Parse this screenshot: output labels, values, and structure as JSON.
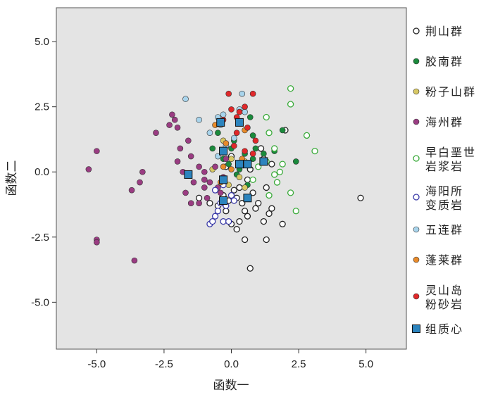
{
  "chart_data": {
    "type": "scatter",
    "xlabel": "函数一",
    "ylabel": "函数二",
    "xlim": [
      -6.5,
      6.5
    ],
    "ylim": [
      -6.8,
      6.3
    ],
    "xticks": [
      "-5.0",
      "-2.5",
      "0.0",
      "2.5",
      "5.0"
    ],
    "xtick_values": [
      -5,
      -2.5,
      0,
      2.5,
      5
    ],
    "yticks": [
      "5.0",
      "2.5",
      "0.0",
      "-2.5",
      "-5.0"
    ],
    "ytick_values": [
      5,
      2.5,
      0,
      -2.5,
      -5
    ],
    "grid": false,
    "legend_position": "right",
    "series": [
      {
        "name": "荆山群",
        "legend_lines": [
          "荆山群"
        ],
        "marker": "circle-open",
        "color": "#222222",
        "points": [
          [
            4.8,
            -1.0
          ],
          [
            0.7,
            -3.7
          ],
          [
            1.3,
            -2.6
          ],
          [
            0.5,
            -2.6
          ],
          [
            1.9,
            -2.0
          ],
          [
            1.2,
            -1.9
          ],
          [
            1.4,
            -1.6
          ],
          [
            1.5,
            -1.4
          ],
          [
            1.0,
            -1.2
          ],
          [
            0.8,
            -0.8
          ],
          [
            1.3,
            -0.6
          ],
          [
            0.2,
            -2.2
          ],
          [
            0.0,
            -2.0
          ],
          [
            0.3,
            -1.9
          ],
          [
            0.6,
            -1.7
          ],
          [
            -0.2,
            -1.5
          ],
          [
            0.5,
            -1.5
          ],
          [
            0.9,
            -1.4
          ],
          [
            -0.5,
            -1.3
          ],
          [
            -0.1,
            -1.1
          ],
          [
            0.2,
            -1.0
          ],
          [
            0.4,
            -1.2
          ],
          [
            -0.3,
            -0.9
          ],
          [
            0.1,
            -0.7
          ],
          [
            0.3,
            -0.6
          ],
          [
            -1.2,
            -1.0
          ],
          [
            -0.8,
            -1.2
          ],
          [
            2.0,
            1.6
          ],
          [
            1.1,
            0.9
          ],
          [
            1.2,
            0.5
          ],
          [
            0.7,
            0.1
          ],
          [
            0.0,
            0.6
          ],
          [
            0.4,
            0.3
          ],
          [
            -0.2,
            0.2
          ],
          [
            0.6,
            -0.3
          ],
          [
            1.5,
            0.3
          ]
        ]
      },
      {
        "name": "胶南群",
        "legend_lines": [
          "胶南群"
        ],
        "marker": "circle",
        "color": "#1a8a3c",
        "points": [
          [
            1.9,
            1.6
          ],
          [
            2.4,
            0.4
          ],
          [
            1.6,
            0.8
          ],
          [
            1.2,
            0.7
          ],
          [
            0.8,
            0.5
          ],
          [
            0.5,
            0.7
          ],
          [
            0.3,
            0.1
          ],
          [
            0.0,
            0.9
          ],
          [
            -0.3,
            0.5
          ],
          [
            -0.7,
            0.9
          ],
          [
            -0.5,
            1.5
          ],
          [
            0.8,
            1.4
          ],
          [
            1.0,
            0.2
          ],
          [
            0.2,
            -0.1
          ],
          [
            0.6,
            -0.5
          ],
          [
            0.9,
            0.9
          ],
          [
            -0.1,
            0.3
          ],
          [
            0.1,
            1.2
          ],
          [
            0.7,
            2.1
          ]
        ]
      },
      {
        "name": "粉子山群",
        "legend_lines": [
          "粉子山群"
        ],
        "marker": "circle",
        "color": "#d8c864",
        "points": [
          [
            -0.7,
            0.1
          ],
          [
            0.5,
            -0.6
          ],
          [
            0.0,
            0.5
          ],
          [
            -0.3,
            1.2
          ],
          [
            0.5,
            0.4
          ],
          [
            0.3,
            -0.2
          ],
          [
            -0.1,
            -0.5
          ]
        ]
      },
      {
        "name": "海州群",
        "legend_lines": [
          "海州群"
        ],
        "marker": "circle",
        "color": "#9a3c82",
        "points": [
          [
            -5.0,
            0.8
          ],
          [
            -5.3,
            0.1
          ],
          [
            -5.0,
            -2.6
          ],
          [
            -5.0,
            -2.7
          ],
          [
            -3.6,
            -3.4
          ],
          [
            -3.3,
            0.0
          ],
          [
            -3.4,
            -0.4
          ],
          [
            -3.7,
            -0.7
          ],
          [
            -2.8,
            1.5
          ],
          [
            -2.3,
            1.8
          ],
          [
            -2.1,
            2.0
          ],
          [
            -2.0,
            1.7
          ],
          [
            -1.6,
            1.2
          ],
          [
            -1.8,
            0.0
          ],
          [
            -1.5,
            0.6
          ],
          [
            -1.2,
            0.2
          ],
          [
            -1.0,
            0.0
          ],
          [
            -1.7,
            -0.8
          ],
          [
            -1.5,
            -1.2
          ],
          [
            -1.2,
            -1.2
          ],
          [
            -1.0,
            -0.6
          ],
          [
            -0.8,
            -0.4
          ],
          [
            -0.5,
            -0.6
          ],
          [
            -0.3,
            -0.2
          ],
          [
            -0.6,
            0.2
          ],
          [
            -0.2,
            0.5
          ],
          [
            -0.4,
            -0.8
          ],
          [
            -2.0,
            0.4
          ],
          [
            -1.4,
            -0.4
          ],
          [
            -0.9,
            -1.0
          ],
          [
            -2.2,
            2.2
          ],
          [
            -1.9,
            0.9
          ],
          [
            -1.0,
            -0.3
          ]
        ]
      },
      {
        "name": "早白垩世岩浆岩",
        "legend_lines": [
          "早白垩世",
          "岩浆岩"
        ],
        "marker": "circle-open",
        "color": "#3aaa3a",
        "points": [
          [
            2.2,
            3.2
          ],
          [
            2.2,
            2.6
          ],
          [
            1.3,
            2.1
          ],
          [
            2.8,
            1.4
          ],
          [
            3.1,
            0.8
          ],
          [
            1.4,
            1.5
          ],
          [
            1.6,
            0.9
          ],
          [
            1.9,
            0.3
          ],
          [
            2.2,
            -0.8
          ],
          [
            2.4,
            -1.5
          ],
          [
            1.7,
            -0.4
          ],
          [
            1.4,
            -0.9
          ],
          [
            1.0,
            0.2
          ],
          [
            1.6,
            -0.1
          ],
          [
            0.8,
            -0.3
          ],
          [
            1.8,
            0.0
          ],
          [
            1.3,
            0.4
          ]
        ]
      },
      {
        "name": "海阳所变质岩",
        "legend_lines": [
          "海阳所",
          "变质岩"
        ],
        "marker": "circle-open",
        "color": "#3a3aa8",
        "points": [
          [
            -0.6,
            -1.7
          ],
          [
            -0.8,
            -2.0
          ],
          [
            -0.7,
            -1.9
          ],
          [
            -0.3,
            -1.9
          ],
          [
            -0.1,
            -1.9
          ],
          [
            -0.4,
            -1.2
          ],
          [
            -0.2,
            -1.3
          ],
          [
            0.1,
            -1.1
          ],
          [
            -0.5,
            -1.5
          ],
          [
            -0.6,
            -0.7
          ],
          [
            -0.3,
            -0.5
          ],
          [
            0.0,
            -0.9
          ]
        ]
      },
      {
        "name": "五连群",
        "legend_lines": [
          "五连群"
        ],
        "marker": "circle",
        "color": "#a8d4ec",
        "points": [
          [
            -1.7,
            2.8
          ],
          [
            -1.2,
            2.0
          ],
          [
            -0.5,
            2.1
          ],
          [
            -0.4,
            1.8
          ],
          [
            -0.3,
            2.2
          ],
          [
            0.3,
            2.4
          ],
          [
            0.5,
            2.3
          ],
          [
            0.4,
            3.0
          ],
          [
            -0.2,
            1.0
          ],
          [
            0.1,
            1.3
          ],
          [
            -0.8,
            1.5
          ],
          [
            -0.5,
            0.6
          ]
        ]
      },
      {
        "name": "蓬莱群",
        "legend_lines": [
          "蓬莱群"
        ],
        "marker": "circle",
        "color": "#e88a2a",
        "points": [
          [
            -0.6,
            1.8
          ],
          [
            -0.3,
            0.2
          ],
          [
            0.0,
            0.1
          ],
          [
            -0.4,
            -0.4
          ],
          [
            0.4,
            0.5
          ],
          [
            -0.2,
            1.1
          ],
          [
            0.5,
            1.6
          ]
        ]
      },
      {
        "name": "灵山岛粉砂岩",
        "legend_lines": [
          "灵山岛",
          "粉砂岩"
        ],
        "marker": "circle",
        "color": "#e0282a",
        "points": [
          [
            -0.1,
            3.0
          ],
          [
            0.8,
            3.0
          ],
          [
            0.0,
            2.4
          ],
          [
            0.3,
            2.3
          ],
          [
            0.5,
            2.5
          ],
          [
            0.2,
            2.1
          ],
          [
            -0.3,
            2.0
          ],
          [
            0.2,
            1.5
          ],
          [
            0.6,
            1.7
          ],
          [
            0.9,
            1.2
          ],
          [
            0.1,
            1.0
          ],
          [
            0.5,
            0.8
          ],
          [
            0.8,
            0.7
          ],
          [
            0.6,
            0.3
          ]
        ]
      },
      {
        "name": "组质心",
        "legend_lines": [
          "组质心"
        ],
        "marker": "square",
        "color": "#2c84be",
        "points": [
          [
            -1.6,
            -0.1
          ],
          [
            -0.3,
            -0.3
          ],
          [
            0.6,
            -1.0
          ],
          [
            -0.3,
            -1.1
          ],
          [
            0.3,
            1.9
          ],
          [
            -0.4,
            1.9
          ],
          [
            -0.3,
            0.8
          ],
          [
            0.6,
            0.3
          ],
          [
            1.2,
            0.4
          ],
          [
            0.3,
            0.3
          ]
        ]
      }
    ]
  }
}
